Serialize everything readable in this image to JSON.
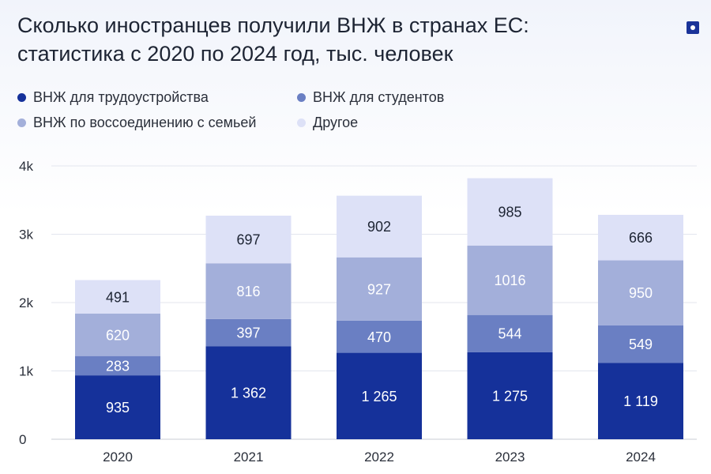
{
  "header": {
    "title_line1": "Сколько иностранцев получили ВНЖ в странах ЕС:",
    "title_line2": "статистика с 2020 по 2024 год, тыс. человек",
    "badge_icon": "square-dot-icon"
  },
  "chart_data": {
    "type": "bar",
    "stacked": true,
    "categories": [
      "2020",
      "2021",
      "2022",
      "2023",
      "2024"
    ],
    "series": [
      {
        "name": "ВНЖ для трудоустройства",
        "color": "#15319a",
        "label_color": "#ffffff",
        "values": [
          935,
          1362,
          1265,
          1275,
          1119
        ],
        "labels": [
          "935",
          "1 362",
          "1 265",
          "1 275",
          "1 119"
        ]
      },
      {
        "name": "ВНЖ для студентов",
        "color": "#6a7fc3",
        "label_color": "#ffffff",
        "values": [
          283,
          397,
          470,
          544,
          549
        ],
        "labels": [
          "283",
          "397",
          "470",
          "544",
          "549"
        ]
      },
      {
        "name": "ВНЖ по воссоединению с семьей",
        "color": "#a3afda",
        "label_color": "#ffffff",
        "values": [
          620,
          816,
          927,
          1016,
          950
        ],
        "labels": [
          "620",
          "816",
          "927",
          "1016",
          "950"
        ]
      },
      {
        "name": "Другое",
        "color": "#dde1f7",
        "label_color": "#1d2433",
        "values": [
          491,
          697,
          902,
          985,
          666
        ],
        "labels": [
          "491",
          "697",
          "902",
          "985",
          "666"
        ]
      }
    ],
    "ylim": [
      0,
      4000
    ],
    "yticks": [
      0,
      1000,
      2000,
      3000,
      4000
    ],
    "ytick_labels": [
      "0",
      "1k",
      "2k",
      "3k",
      "4k"
    ],
    "grid": true,
    "legend_position": "top-left"
  }
}
